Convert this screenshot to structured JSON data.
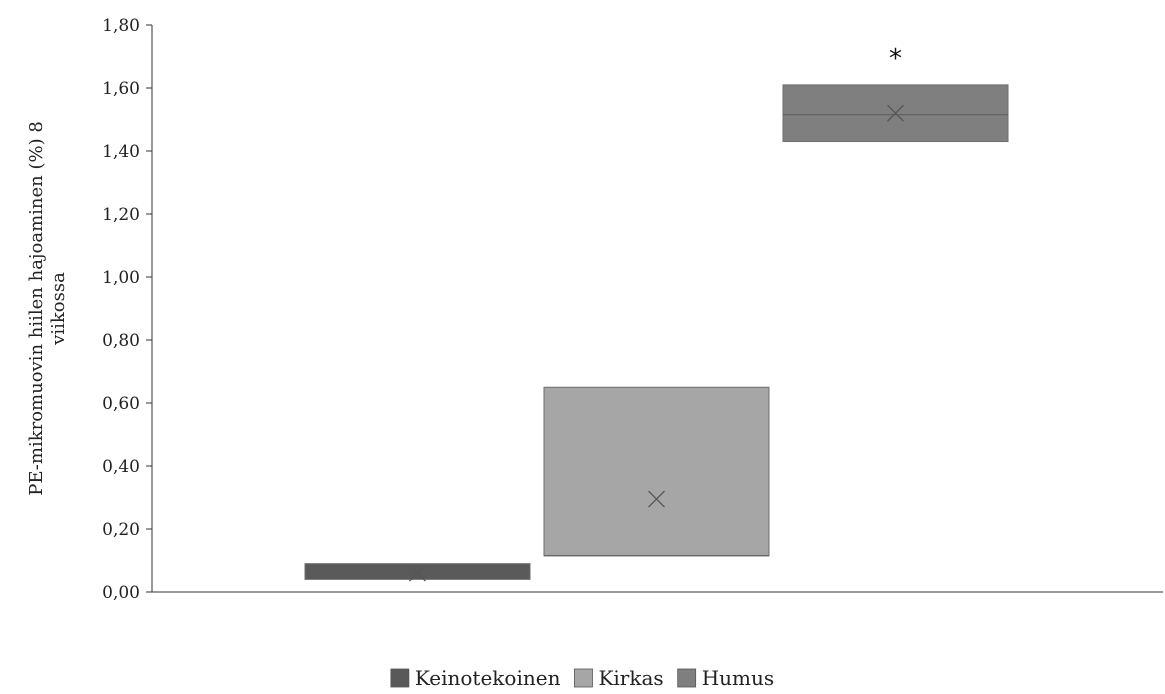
{
  "chart_data": {
    "type": "boxplot",
    "title": "",
    "ylabel_lines": [
      "PE-mikromuovin hiilen hajoaminen (%) 8",
      "viikossa"
    ],
    "ylim": [
      0,
      1.8
    ],
    "yticks": [
      0,
      0.2,
      0.4,
      0.6,
      0.8,
      1.0,
      1.2,
      1.4,
      1.6,
      1.8
    ],
    "ytick_labels": [
      "0,00",
      "0,20",
      "0,40",
      "0,60",
      "0,80",
      "1,00",
      "1,20",
      "1,40",
      "1,60",
      "1,80"
    ],
    "series": [
      {
        "name": "Keinotekoinen",
        "q1": 0.04,
        "median": 0.065,
        "q3": 0.09,
        "mean": 0.06,
        "color": "#595959"
      },
      {
        "name": "Kirkas",
        "q1": 0.115,
        "median": 0.115,
        "q3": 0.65,
        "mean": 0.295,
        "color": "#a6a6a6"
      },
      {
        "name": "Humus",
        "q1": 1.43,
        "median": 1.515,
        "q3": 1.61,
        "mean": 1.52,
        "color": "#7f7f7f",
        "annotation": "*"
      }
    ],
    "legend": {
      "position": "bottom"
    },
    "grid": false
  }
}
